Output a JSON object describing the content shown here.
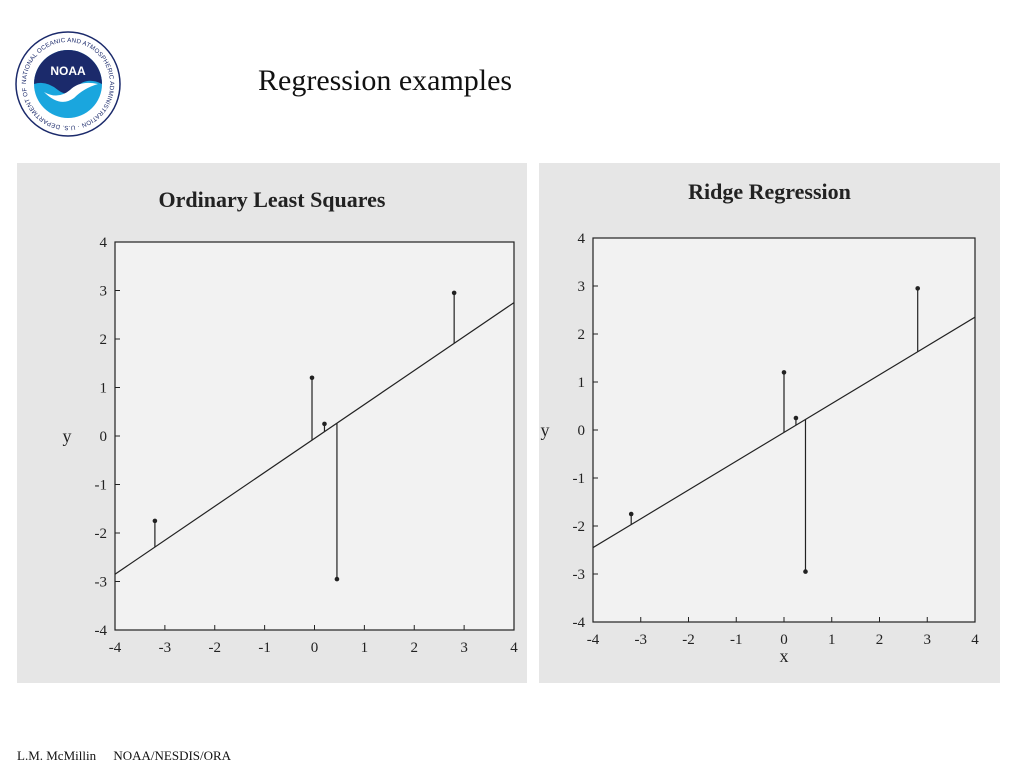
{
  "logo": {
    "ring_text": "NATIONAL OCEANIC AND ATMOSPHERIC ADMINISTRATION · U.S. DEPARTMENT OF COMMERCE",
    "center_text": "NOAA",
    "colors": {
      "navy": "#1b2a6b",
      "cyan": "#1aa6de",
      "white": "#ffffff"
    }
  },
  "slide": {
    "title": "Regression examples"
  },
  "footer": {
    "author": "L.M. McMillin",
    "org": "NOAA/NESDIS/ORA"
  },
  "colors": {
    "panel_bg": "#e6e6e6",
    "plot_bg": "#f2f2f2",
    "ink": "#222222"
  },
  "chart_data": [
    {
      "type": "scatter",
      "title": "Ordinary Least Squares",
      "xlabel": "",
      "ylabel": "y",
      "xlim": [
        -4,
        4
      ],
      "ylim": [
        -4,
        4
      ],
      "xticks": [
        -4,
        -3,
        -2,
        -1,
        0,
        1,
        2,
        3,
        4
      ],
      "yticks": [
        -4,
        -3,
        -2,
        -1,
        0,
        1,
        2,
        3,
        4
      ],
      "points": [
        {
          "x": -3.2,
          "y": -1.75
        },
        {
          "x": -0.05,
          "y": 1.2
        },
        {
          "x": 0.2,
          "y": 0.25
        },
        {
          "x": 0.45,
          "y": -2.95
        },
        {
          "x": 2.8,
          "y": 2.95
        }
      ],
      "fit_line": {
        "slope": 0.7,
        "intercept": -0.05
      },
      "residuals": true
    },
    {
      "type": "scatter",
      "title": "Ridge Regression",
      "xlabel": "x",
      "ylabel": "y",
      "xlim": [
        -4,
        4
      ],
      "ylim": [
        -4,
        4
      ],
      "xticks": [
        -4,
        -3,
        -2,
        -1,
        0,
        1,
        2,
        3,
        4
      ],
      "yticks": [
        -4,
        -3,
        -2,
        -1,
        0,
        1,
        2,
        3,
        4
      ],
      "points": [
        {
          "x": -3.2,
          "y": -1.75
        },
        {
          "x": 0.0,
          "y": 1.2
        },
        {
          "x": 0.25,
          "y": 0.25
        },
        {
          "x": 0.45,
          "y": -2.95
        },
        {
          "x": 2.8,
          "y": 2.95
        }
      ],
      "fit_line": {
        "slope": 0.6,
        "intercept": -0.05
      },
      "residuals": true
    }
  ]
}
